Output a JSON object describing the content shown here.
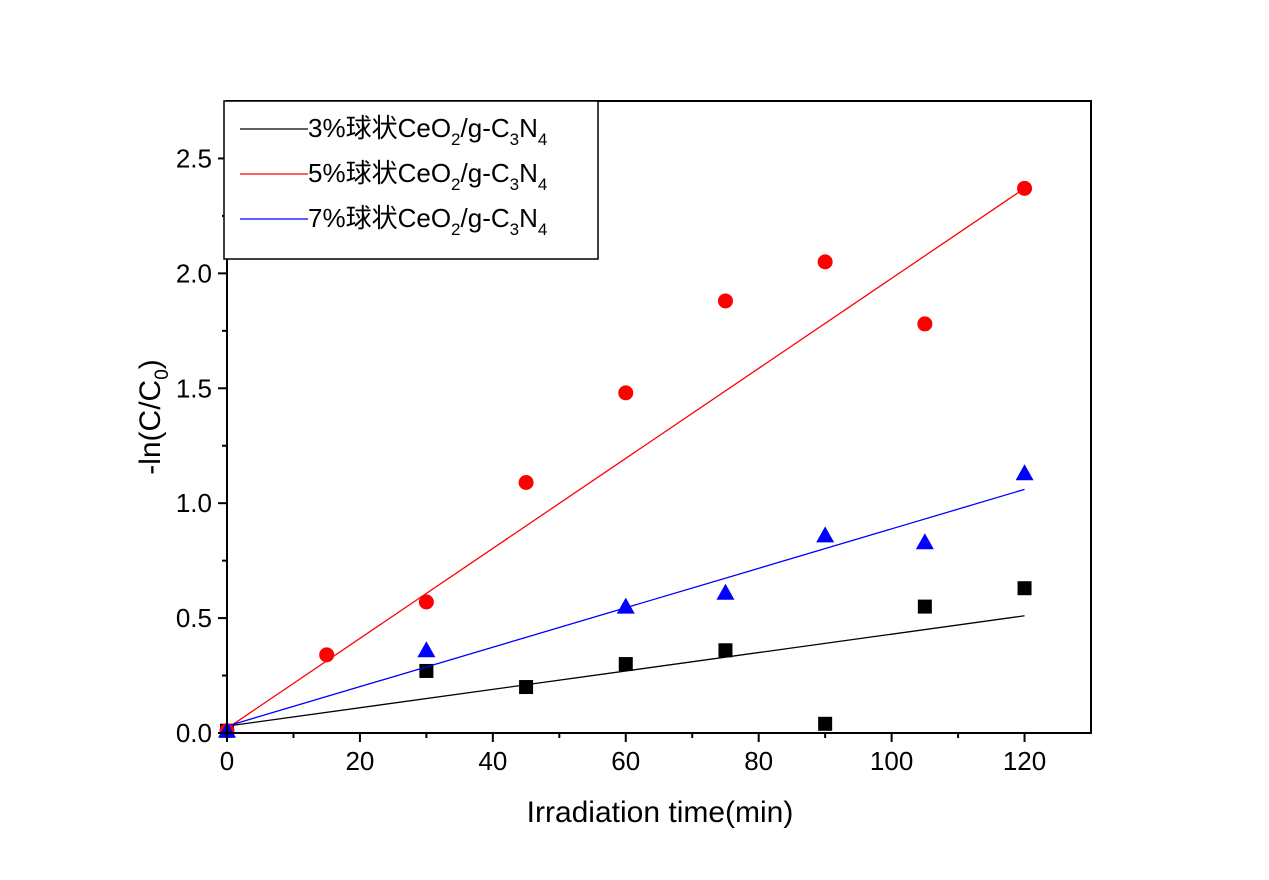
{
  "chart_data": {
    "type": "scatter",
    "title": "",
    "xlabel": "Irradiation time(min)",
    "ylabel_parts": [
      "-ln(C/C",
      "0",
      ")"
    ],
    "xlim": [
      0,
      130
    ],
    "ylim": [
      0,
      2.75
    ],
    "xticks": [
      0,
      20,
      40,
      60,
      80,
      100,
      120
    ],
    "xtick_labels": [
      "0",
      "20",
      "40",
      "60",
      "80",
      "100",
      "120"
    ],
    "yticks": [
      0,
      0.5,
      1.0,
      1.5,
      2.0,
      2.5
    ],
    "ytick_labels": [
      "0.0",
      "0.5",
      "1.0",
      "1.5",
      "2.0",
      "2.5"
    ],
    "grid": false,
    "legend_placement": "top-left",
    "series": [
      {
        "name": "3%球状CeO2/g-C3N4",
        "label_parts": [
          "3%球状CeO",
          "2",
          "/g-C",
          "3",
          "N",
          "4"
        ],
        "color": "#000000",
        "marker": "square",
        "x": [
          0,
          30,
          45,
          60,
          75,
          90,
          105,
          120
        ],
        "y": [
          0.01,
          0.27,
          0.2,
          0.3,
          0.36,
          0.04,
          0.55,
          0.63
        ],
        "fit": {
          "x": [
            0,
            120
          ],
          "y": [
            0.03,
            0.51
          ]
        }
      },
      {
        "name": "5%球状CeO2/g-C3N4",
        "label_parts": [
          "5%球状CeO",
          "2",
          "/g-C",
          "3",
          "N",
          "4"
        ],
        "color": "#ff0000",
        "marker": "circle",
        "x": [
          0,
          15,
          30,
          45,
          60,
          75,
          90,
          105,
          120
        ],
        "y": [
          0.01,
          0.34,
          0.57,
          1.09,
          1.48,
          1.88,
          2.05,
          1.78,
          2.37
        ],
        "fit": {
          "x": [
            0,
            120
          ],
          "y": [
            0.02,
            2.37
          ]
        }
      },
      {
        "name": "7%球状CeO2/g-C3N4",
        "label_parts": [
          "7%球状CeO",
          "2",
          "/g-C",
          "3",
          "N",
          "4"
        ],
        "color": "#0000ff",
        "marker": "triangle",
        "x": [
          0,
          30,
          60,
          75,
          90,
          105,
          120
        ],
        "y": [
          0.01,
          0.36,
          0.55,
          0.61,
          0.86,
          0.83,
          1.13
        ],
        "fit": {
          "x": [
            0,
            120
          ],
          "y": [
            0.03,
            1.06
          ]
        }
      }
    ]
  }
}
